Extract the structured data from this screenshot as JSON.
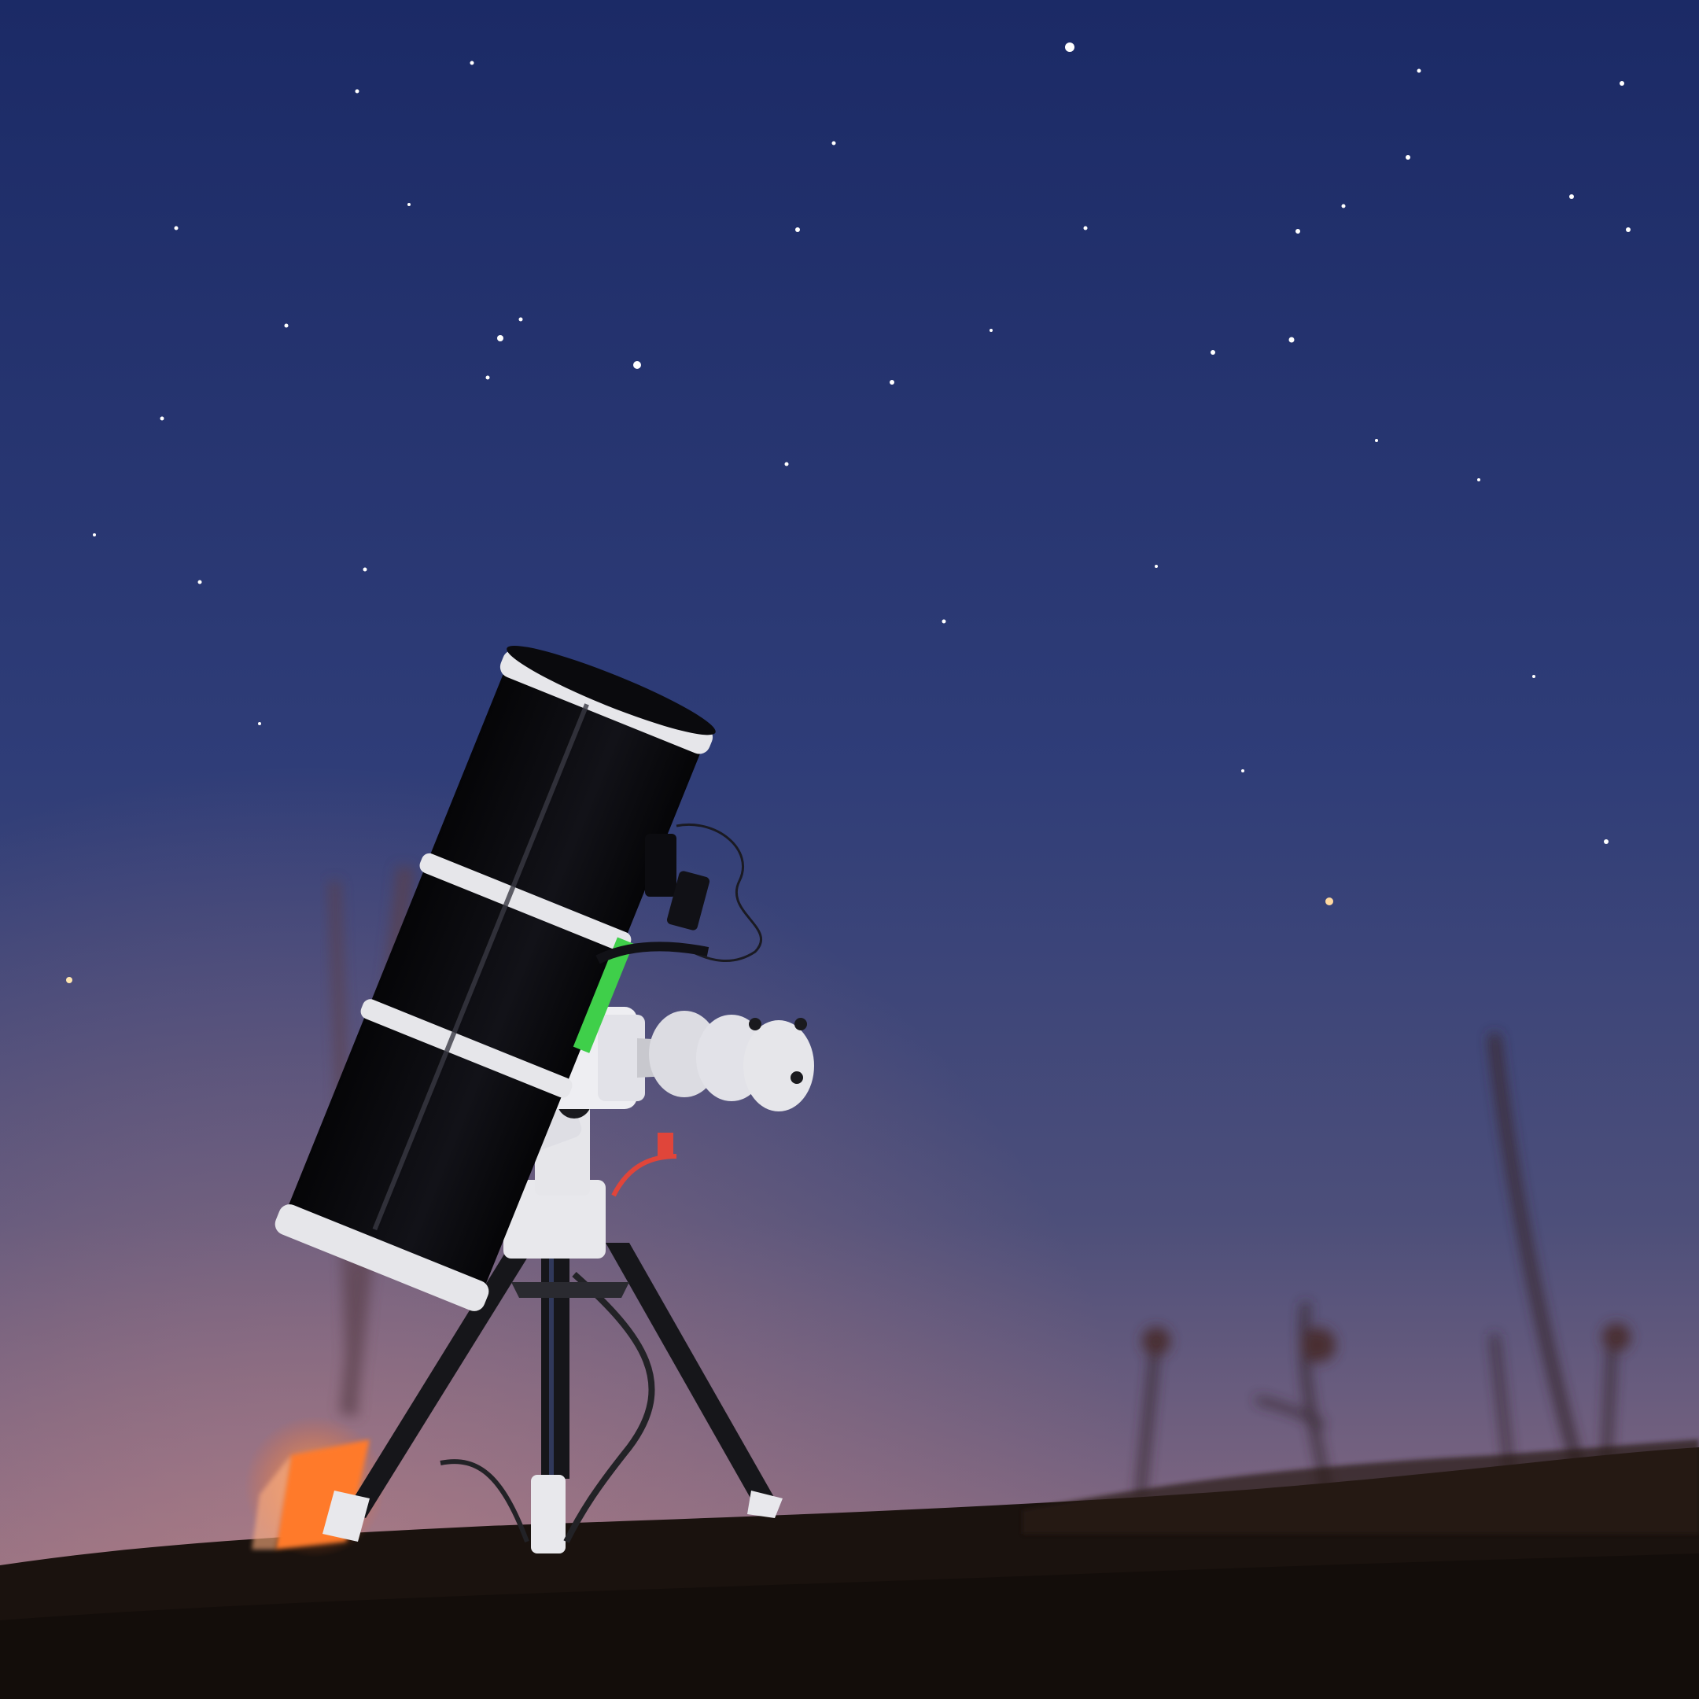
{
  "scene": {
    "subject": "telescope-on-tripod",
    "colors": {
      "sky_top": "#1b2a66",
      "sky_mid": "#2f3d78",
      "sky_low": "#5a5378",
      "sky_horizon": "#8a6b7e",
      "ground": "#1a120e",
      "tube": "#0c0c10",
      "tube_band": "#e6e6ea",
      "mount": "#e8e8ec",
      "counterweight": "#dcdce2",
      "tripod_leg": "#16161a",
      "accent_green": "#3fcf4a",
      "accent_red": "#e0453a",
      "lamp": "#ff7a2a",
      "star": "#ffffff"
    }
  }
}
